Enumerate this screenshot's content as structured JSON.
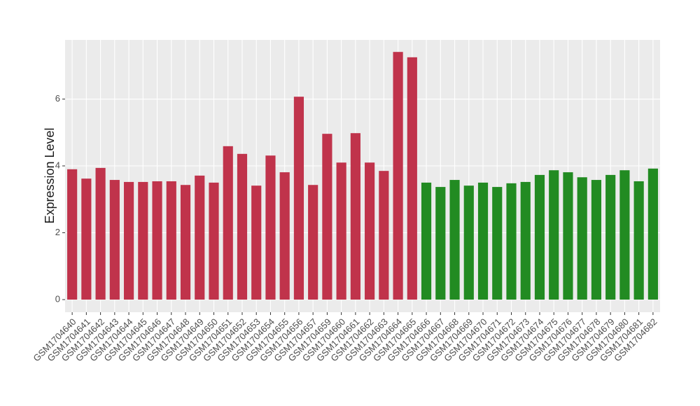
{
  "chart_data": {
    "type": "bar",
    "y_label": "Expression Level",
    "categories": [
      "GSM1704640",
      "GSM1704641",
      "GSM1704642",
      "GSM1704643",
      "GSM1704644",
      "GSM1704645",
      "GSM1704646",
      "GSM1704647",
      "GSM1704648",
      "GSM1704649",
      "GSM1704650",
      "GSM1704651",
      "GSM1704652",
      "GSM1704653",
      "GSM1704654",
      "GSM1704655",
      "GSM1704656",
      "GSM1704657",
      "GSM1704659",
      "GSM1704660",
      "GSM1704661",
      "GSM1704662",
      "GSM1704663",
      "GSM1704664",
      "GSM1704665",
      "GSM1704666",
      "GSM1704667",
      "GSM1704668",
      "GSM1704669",
      "GSM1704670",
      "GSM1704671",
      "GSM1704672",
      "GSM1704673",
      "GSM1704674",
      "GSM1704675",
      "GSM1704676",
      "GSM1704677",
      "GSM1704678",
      "GSM1704679",
      "GSM1704680",
      "GSM1704681",
      "GSM1704682"
    ],
    "values": [
      3.9,
      3.62,
      3.94,
      3.58,
      3.52,
      3.52,
      3.54,
      3.54,
      3.43,
      3.71,
      3.5,
      4.59,
      4.36,
      3.41,
      4.31,
      3.81,
      6.07,
      3.43,
      4.96,
      4.1,
      4.98,
      4.1,
      3.85,
      7.41,
      7.25,
      3.5,
      3.37,
      3.58,
      3.41,
      3.5,
      3.37,
      3.48,
      3.52,
      3.73,
      3.87,
      3.81,
      3.66,
      3.58,
      3.73,
      3.87,
      3.54,
      3.92
    ],
    "colors": [
      "#c0334b",
      "#c0334b",
      "#c0334b",
      "#c0334b",
      "#c0334b",
      "#c0334b",
      "#c0334b",
      "#c0334b",
      "#c0334b",
      "#c0334b",
      "#c0334b",
      "#c0334b",
      "#c0334b",
      "#c0334b",
      "#c0334b",
      "#c0334b",
      "#c0334b",
      "#c0334b",
      "#c0334b",
      "#c0334b",
      "#c0334b",
      "#c0334b",
      "#c0334b",
      "#c0334b",
      "#c0334b",
      "#228b22",
      "#228b22",
      "#228b22",
      "#228b22",
      "#228b22",
      "#228b22",
      "#228b22",
      "#228b22",
      "#228b22",
      "#228b22",
      "#228b22",
      "#228b22",
      "#228b22",
      "#228b22",
      "#228b22",
      "#228b22",
      "#228b22"
    ],
    "ylim": [
      -0.377,
      7.77
    ],
    "yticks": [
      0,
      2,
      4,
      6
    ],
    "grid": true
  }
}
